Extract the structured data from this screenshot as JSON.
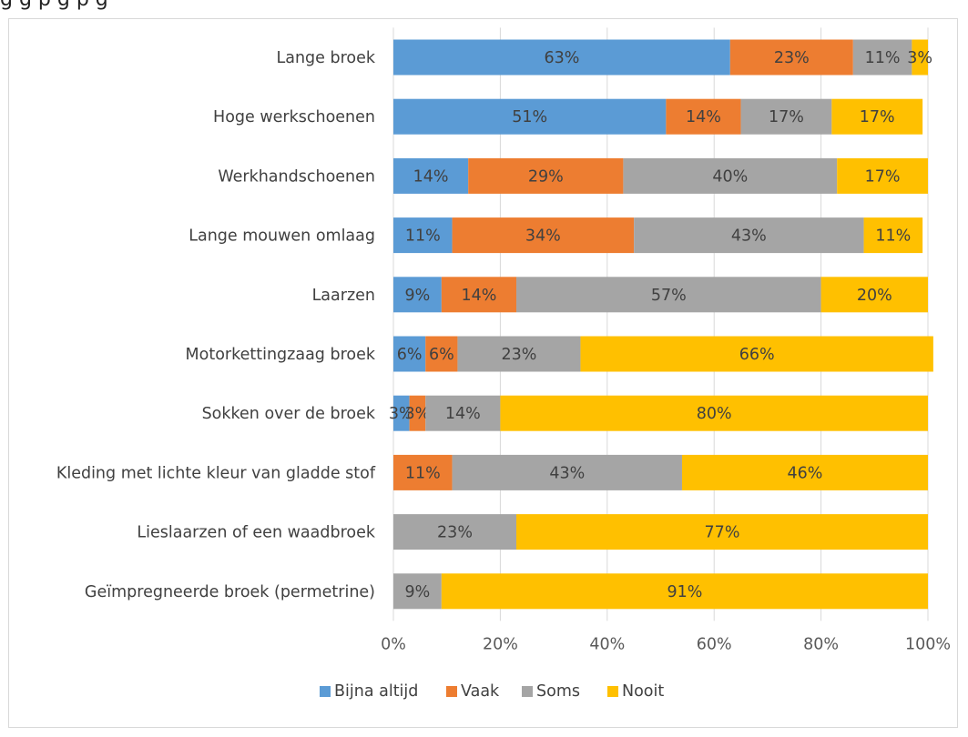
{
  "caption": {
    "text": "g                                                         g p                                        g p                g"
  },
  "chart_data": {
    "type": "bar",
    "orientation": "horizontal",
    "stacked": "percent",
    "categories": [
      "Lange broek",
      "Hoge werkschoenen",
      "Werkhandschoenen",
      "Lange mouwen omlaag",
      "Laarzen",
      "Motorkettingzaag broek",
      "Sokken over de broek",
      "Kleding met lichte kleur van gladde stof",
      "Lieslaarzen of een waadbroek",
      "Geïmpregneerde broek (permetrine)"
    ],
    "series": [
      {
        "name": "Bijna altijd",
        "color": "#5b9bd5",
        "values": [
          63,
          51,
          14,
          11,
          9,
          6,
          3,
          null,
          null,
          null
        ]
      },
      {
        "name": "Vaak",
        "color": "#ed7d31",
        "values": [
          23,
          14,
          29,
          34,
          14,
          6,
          3,
          11,
          null,
          null
        ]
      },
      {
        "name": "Soms",
        "color": "#a5a5a5",
        "values": [
          11,
          17,
          40,
          43,
          57,
          23,
          14,
          43,
          23,
          9
        ]
      },
      {
        "name": "Nooit",
        "color": "#ffc000",
        "values": [
          3,
          17,
          17,
          11,
          20,
          66,
          80,
          46,
          77,
          91
        ]
      }
    ],
    "x_ticks": [
      "0%",
      "20%",
      "40%",
      "60%",
      "80%",
      "100%"
    ],
    "xlim": [
      0,
      100
    ],
    "grid": true,
    "legend_position": "bottom",
    "title": "",
    "xlabel": "",
    "ylabel": ""
  }
}
